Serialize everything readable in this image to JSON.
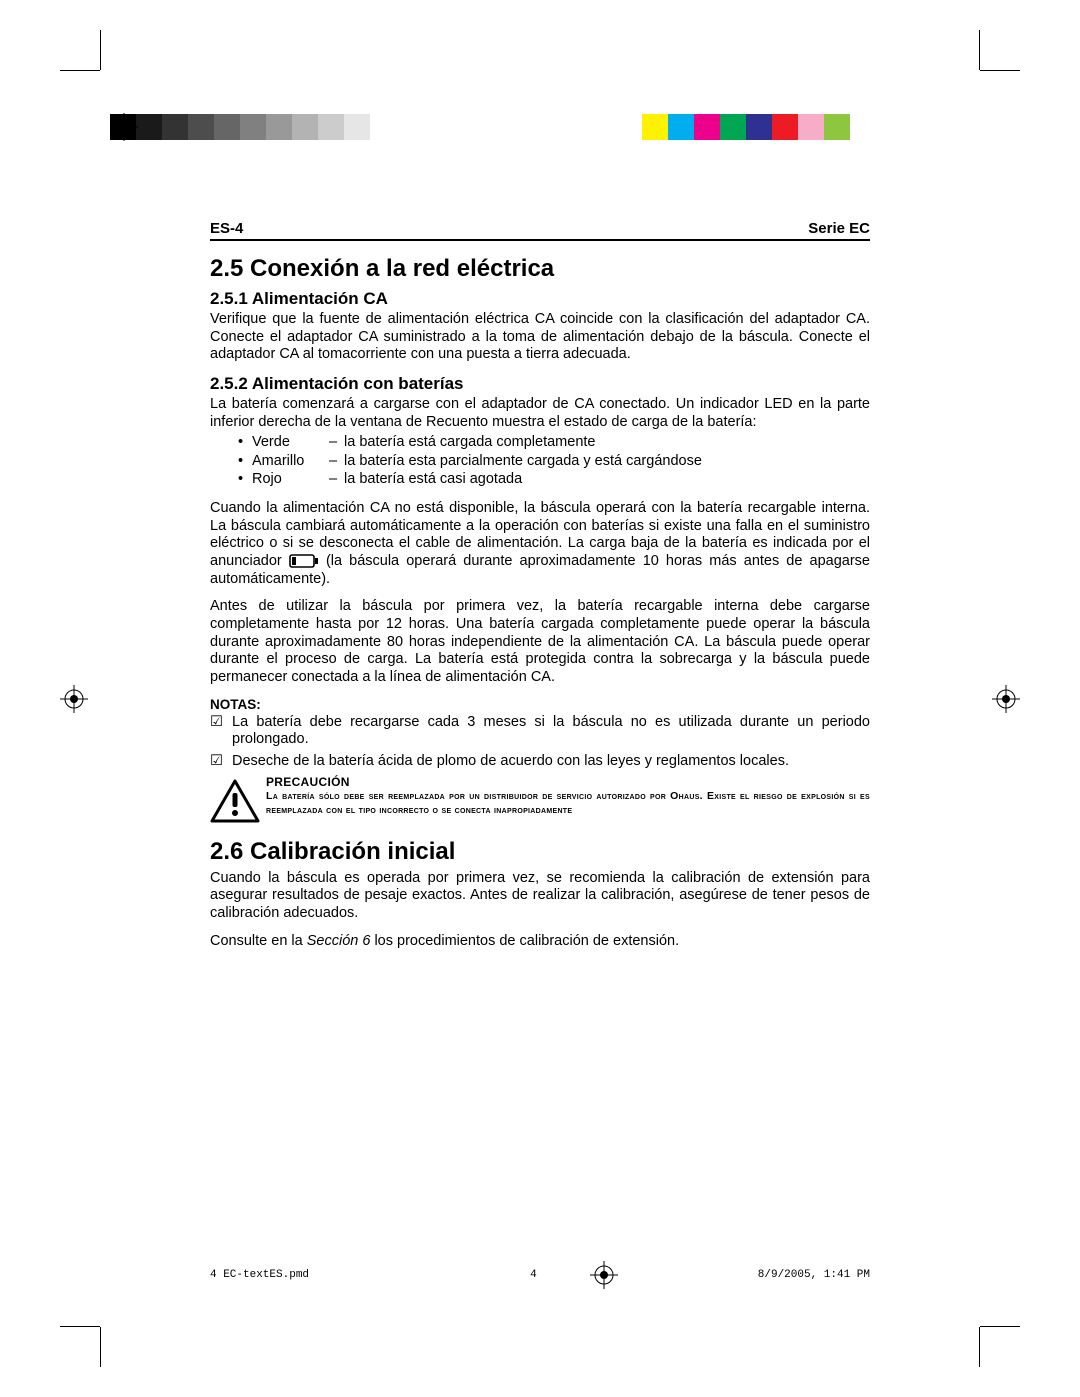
{
  "printmarks": {
    "gray_swatches": [
      "#000000",
      "#1a1a1a",
      "#333333",
      "#4d4d4d",
      "#666666",
      "#808080",
      "#999999",
      "#b3b3b3",
      "#cccccc",
      "#e6e6e6"
    ],
    "color_swatches": [
      "#fff200",
      "#00aeef",
      "#ec008c",
      "#00a651",
      "#2e3192",
      "#ed1c24",
      "#f7adc8",
      "#8dc63f"
    ]
  },
  "header": {
    "left": "ES-4",
    "right": "Serie EC"
  },
  "s25": {
    "title": "2.5 Conexión a la red eléctrica",
    "s251": {
      "title": "2.5.1 Alimentación CA",
      "p1": "Verifique que la fuente de alimentación eléctrica CA coincide con la clasificación del adaptador CA. Conecte el adaptador CA suministrado a la toma de alimentación debajo de la báscula. Conecte el adaptador CA al tomacorriente con una puesta a tierra adecuada."
    },
    "s252": {
      "title": "2.5.2 Alimentación con baterías",
      "intro": "La batería comenzará a cargarse con el adaptador de CA conectado. Un indicador LED en la parte inferior derecha de la ventana de Recuento muestra el estado de carga de la batería:",
      "status": [
        {
          "color": "Verde",
          "desc": "la batería está cargada completamente"
        },
        {
          "color": "Amarillo",
          "desc": "la batería esta parcialmente cargada y está cargándose"
        },
        {
          "color": "Rojo",
          "desc": "la batería está casi agotada"
        }
      ],
      "p2a": "Cuando la alimentación CA no está disponible, la báscula operará con la batería recargable interna. La báscula cambiará automáticamente a la operación con baterías si existe una falla en el suministro eléctrico o si se desconecta el cable de alimentación. La carga baja de la batería es indicada por el anunciador ",
      "p2b": " (la báscula operará durante aproximadamente 10 horas más antes de apagarse automáticamente).",
      "p3": "Antes de utilizar la báscula por primera vez, la batería recargable interna debe cargarse completamente hasta por 12 horas.  Una batería cargada completamente puede operar la báscula durante aproximadamente 80 horas independiente de la alimentación CA. La báscula puede operar durante el proceso de carga. La batería está protegida contra la sobrecarga y la báscula puede permanecer conectada a la línea de alimentación CA.",
      "notas_label": "NOTAS:",
      "notes": [
        "La batería debe recargarse cada 3 meses si la báscula no es utilizada durante un periodo prolongado.",
        "Deseche de la batería ácida de plomo de acuerdo con las leyes y reglamentos locales."
      ],
      "caution_title": "PRECAUCIÓN",
      "caution_body": "La batería sólo debe ser reemplazada por un distribuidor de servicio autorizado por Ohaus. Existe el riesgo de explosión si es reemplazada con el tipo incorrecto o se conecta inapropiadamente"
    }
  },
  "s26": {
    "title": "2.6 Calibración inicial",
    "p1": "Cuando la báscula es operada por primera vez, se recomienda la calibración de extensión para asegurar resultados de pesaje exactos. Antes de realizar la calibración, asegúrese de tener pesos de calibración adecuados.",
    "p2a": "Consulte en la ",
    "p2ref": "Sección 6",
    "p2b": " los procedimientos de calibración de extensión."
  },
  "footer": {
    "file": "4 EC-textES.pmd",
    "page": "4",
    "datetime": "8/9/2005, 1:41 PM"
  }
}
